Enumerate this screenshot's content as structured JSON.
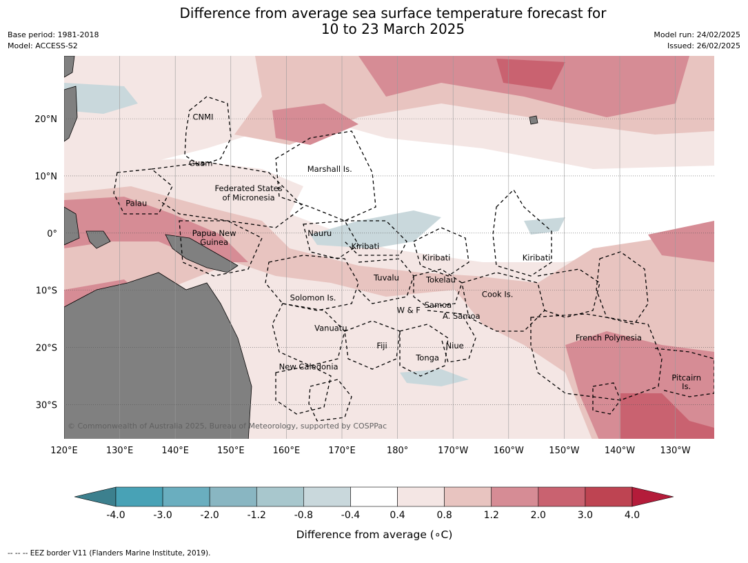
{
  "title_line1": "Difference from average sea surface temperature forecast for",
  "title_line2": "10 to 23 March 2025",
  "base_period": "Base period: 1981-2018",
  "model": "Model: ACCESS-S2",
  "model_run": "Model run: 24/02/2025",
  "issued": "Issued: 26/02/2025",
  "copyright": "© Commonwealth of Australia 2025, Bureau of Meteorology, supported by COSPPac",
  "footnote": "-- -- -- EEZ border V11 (Flanders Marine Institute, 2019).",
  "map": {
    "lon_labels": [
      "120°E",
      "130°E",
      "140°E",
      "150°E",
      "160°E",
      "170°E",
      "180°",
      "170°W",
      "160°W",
      "150°W",
      "140°W",
      "130°W"
    ],
    "lat_labels": [
      "20°N",
      "10°N",
      "0°",
      "10°S",
      "20°S",
      "30°S"
    ],
    "lon_range": [
      120,
      237
    ],
    "lat_range": [
      -36,
      31
    ],
    "colors": {
      "ocean_neutral": "#ffffff",
      "land": "#808080",
      "eez": "#000000"
    },
    "regions": [
      {
        "name": "CNMI",
        "lon": 145.0,
        "lat": 20.3
      },
      {
        "name": "Guam",
        "lon": 144.6,
        "lat": 12.2
      },
      {
        "name": "Marshall Is.",
        "lon": 167.8,
        "lat": 11.2
      },
      {
        "name": "Federated States",
        "lon": 153.2,
        "lat": 7.8
      },
      {
        "name": "of Micronesia",
        "lon": 153.2,
        "lat": 6.2
      },
      {
        "name": "Palau",
        "lon": 133.0,
        "lat": 5.2
      },
      {
        "name": "Nauru",
        "lon": 166.0,
        "lat": 0.0
      },
      {
        "name": "Papua New",
        "lon": 147.0,
        "lat": 0.0
      },
      {
        "name": "Guinea",
        "lon": 147.0,
        "lat": -1.6
      },
      {
        "name": "Kiribati",
        "lon": 174.2,
        "lat": -2.3
      },
      {
        "name": "Kiribati",
        "lon": 187.0,
        "lat": -4.3
      },
      {
        "name": "Kiribati",
        "lon": 205.0,
        "lat": -4.3
      },
      {
        "name": "Tuvalu",
        "lon": 178.0,
        "lat": -7.8
      },
      {
        "name": "Tokelau",
        "lon": 187.8,
        "lat": -8.2
      },
      {
        "name": "Cook Is.",
        "lon": 198.0,
        "lat": -10.7
      },
      {
        "name": "Solomon Is.",
        "lon": 164.8,
        "lat": -11.3
      },
      {
        "name": "Samoa",
        "lon": 187.3,
        "lat": -12.6
      },
      {
        "name": "W & F",
        "lon": 182.0,
        "lat": -13.5
      },
      {
        "name": "A. Samoa",
        "lon": 191.5,
        "lat": -14.5
      },
      {
        "name": "Vanuatu",
        "lon": 168.0,
        "lat": -16.6
      },
      {
        "name": "French Polynesia",
        "lon": 218.0,
        "lat": -18.3
      },
      {
        "name": "Niue",
        "lon": 190.3,
        "lat": -19.7
      },
      {
        "name": "Fiji",
        "lon": 177.2,
        "lat": -19.7
      },
      {
        "name": "Tonga",
        "lon": 185.4,
        "lat": -21.8
      },
      {
        "name": "New Caledonia",
        "lon": 164.0,
        "lat": -23.4
      },
      {
        "name": "Pitcairn",
        "lon": 232.0,
        "lat": -25.3
      },
      {
        "name": "Is.",
        "lon": 232.0,
        "lat": -26.8
      }
    ]
  },
  "colorbar": {
    "label": "Difference from average (∘C)",
    "ticks": [
      "-4.0",
      "-3.0",
      "-2.0",
      "-1.2",
      "-0.8",
      "-0.4",
      "0.4",
      "0.8",
      "1.2",
      "2.0",
      "3.0",
      "4.0"
    ],
    "colors": [
      "#3c808e",
      "#48a2b6",
      "#6aaebf",
      "#89b6c2",
      "#a8c7cd",
      "#c9d8dc",
      "#ffffff",
      "#f4e6e4",
      "#e8c4c0",
      "#d68c95",
      "#c96270",
      "#be4452",
      "#b41c3a"
    ]
  }
}
